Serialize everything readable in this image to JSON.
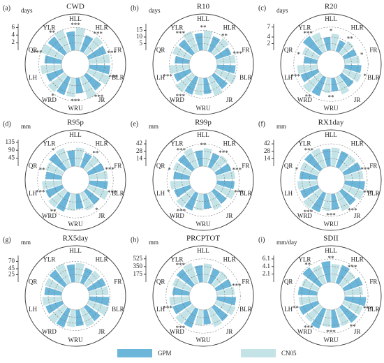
{
  "chart_data": [
    {
      "type": "polar-bar",
      "panel": "(a)",
      "title": "CWD",
      "unit": "days",
      "categories": [
        "HLL",
        "HLR",
        "FR",
        "BLR",
        "JR",
        "WRU",
        "WRD",
        "LH",
        "QR",
        "YLR"
      ],
      "series": [
        {
          "name": "GPM",
          "color": "#6cb6d9",
          "values": [
            5,
            4.5,
            5,
            5.5,
            5,
            4,
            5,
            4.5,
            4.5,
            5.5
          ]
        },
        {
          "name": "CN05",
          "color": "#c3e3e7",
          "values": [
            6,
            5.5,
            5.5,
            6,
            6,
            5,
            5.5,
            5.5,
            6,
            6
          ]
        }
      ],
      "stars": [
        "***",
        "***",
        "***",
        "***",
        "***",
        "***",
        "*",
        null,
        "***",
        "**"
      ],
      "ylim": [
        0,
        7
      ],
      "yticks": [
        2,
        4,
        6
      ]
    },
    {
      "type": "polar-bar",
      "panel": "(b)",
      "title": "R10",
      "unit": "days",
      "categories": [
        "HLL",
        "HLR",
        "FR",
        "BLR",
        "JR",
        "WRU",
        "WRD",
        "LH",
        "QR",
        "YLR"
      ],
      "series": [
        {
          "name": "GPM",
          "color": "#6cb6d9",
          "values": [
            13,
            12,
            12,
            14,
            13,
            12,
            14,
            13,
            11,
            13
          ]
        },
        {
          "name": "CN05",
          "color": "#c3e3e7",
          "values": [
            15,
            14,
            14,
            16,
            15,
            13,
            16,
            15,
            14,
            16
          ]
        }
      ],
      "stars": [
        "**",
        "**",
        "***",
        null,
        null,
        null,
        "***",
        "***",
        null,
        "***"
      ],
      "ylim": [
        0,
        20
      ],
      "yticks": [
        5,
        10,
        15
      ]
    },
    {
      "type": "polar-bar",
      "panel": "(c)",
      "title": "R20",
      "unit": "days",
      "categories": [
        "HLL",
        "HLR",
        "FR",
        "BLR",
        "JR",
        "WRU",
        "WRD",
        "LH",
        "QR",
        "YLR"
      ],
      "series": [
        {
          "name": "GPM",
          "color": "#6cb6d9",
          "values": [
            4,
            3.5,
            4,
            5,
            4.5,
            4,
            6,
            5.5,
            4,
            6.5
          ]
        },
        {
          "name": "CN05",
          "color": "#c3e3e7",
          "values": [
            5,
            4.5,
            4.5,
            5.5,
            5.5,
            4.5,
            6.5,
            6,
            5,
            6
          ]
        }
      ],
      "stars": [
        "*",
        "**",
        "*",
        "*",
        null,
        "**",
        "**",
        "***",
        "*",
        "***"
      ],
      "ylim": [
        0,
        8
      ],
      "yticks": [
        2,
        4,
        7
      ]
    },
    {
      "type": "polar-bar",
      "panel": "(d)",
      "title": "R95p",
      "unit": "mm",
      "categories": [
        "HLL",
        "HLR",
        "FR",
        "BLR",
        "JR",
        "WRU",
        "WRD",
        "LH",
        "QR",
        "YLR"
      ],
      "series": [
        {
          "name": "GPM",
          "color": "#6cb6d9",
          "values": [
            90,
            85,
            95,
            105,
            95,
            85,
            110,
            100,
            90,
            110
          ]
        },
        {
          "name": "CN05",
          "color": "#c3e3e7",
          "values": [
            105,
            95,
            105,
            120,
            105,
            95,
            115,
            110,
            100,
            115
          ]
        }
      ],
      "stars": [
        null,
        "**",
        "***",
        "***",
        "*",
        null,
        "**",
        "***",
        "**",
        "*"
      ],
      "ylim": [
        0,
        150
      ],
      "yticks": [
        45,
        90,
        135
      ]
    },
    {
      "type": "polar-bar",
      "panel": "(e)",
      "title": "R99p",
      "unit": "mm",
      "categories": [
        "HLL",
        "HLR",
        "FR",
        "BLR",
        "JR",
        "WRU",
        "WRD",
        "LH",
        "QR",
        "YLR"
      ],
      "series": [
        {
          "name": "GPM",
          "color": "#6cb6d9",
          "values": [
            30,
            28,
            30,
            33,
            30,
            28,
            35,
            32,
            30,
            34
          ]
        },
        {
          "name": "CN05",
          "color": "#c3e3e7",
          "values": [
            34,
            32,
            34,
            38,
            34,
            31,
            38,
            36,
            34,
            38
          ]
        }
      ],
      "stars": [
        "**",
        "***",
        "***",
        "***",
        null,
        null,
        "***",
        "*",
        "*",
        "***"
      ],
      "ylim": [
        0,
        50
      ],
      "yticks": [
        14,
        28,
        42
      ]
    },
    {
      "type": "polar-bar",
      "panel": "(f)",
      "title": "RX1day",
      "unit": "mm",
      "categories": [
        "HLL",
        "HLR",
        "FR",
        "BLR",
        "JR",
        "WRU",
        "WRD",
        "LH",
        "QR",
        "YLR"
      ],
      "series": [
        {
          "name": "GPM",
          "color": "#6cb6d9",
          "values": [
            33,
            32,
            34,
            38,
            33,
            30,
            38,
            35,
            33,
            37
          ]
        },
        {
          "name": "CN05",
          "color": "#c3e3e7",
          "values": [
            35,
            33,
            35,
            40,
            36,
            32,
            40,
            37,
            35,
            38
          ]
        }
      ],
      "stars": [
        null,
        null,
        "***",
        "***",
        "***",
        "***",
        "***",
        null,
        "*",
        "***"
      ],
      "ylim": [
        0,
        50
      ],
      "yticks": [
        14,
        28,
        42
      ]
    },
    {
      "type": "polar-bar",
      "panel": "(g)",
      "title": "RX5day",
      "unit": "mm",
      "categories": [
        "HLL",
        "HLR",
        "FR",
        "BLR",
        "JR",
        "WRU",
        "WRD",
        "LH",
        "QR",
        "YLR"
      ],
      "series": [
        {
          "name": "GPM",
          "color": "#6cb6d9",
          "values": [
            60,
            55,
            62,
            68,
            60,
            55,
            66,
            60,
            58,
            65
          ]
        },
        {
          "name": "CN05",
          "color": "#c3e3e7",
          "values": [
            65,
            60,
            65,
            72,
            64,
            58,
            70,
            65,
            62,
            70
          ]
        }
      ],
      "ylim": [
        0,
        90
      ],
      "yticks": [
        25,
        45,
        70
      ]
    },
    {
      "type": "polar-bar",
      "panel": "(h)",
      "title": "PRCPTOT",
      "unit": "mm",
      "categories": [
        "HLL",
        "HLR",
        "FR",
        "BLR",
        "JR",
        "WRU",
        "WRD",
        "LH",
        "QR",
        "YLR"
      ],
      "series": [
        {
          "name": "GPM",
          "color": "#6cb6d9",
          "values": [
            380,
            350,
            370,
            430,
            400,
            330,
            450,
            420,
            380,
            450
          ]
        },
        {
          "name": "CN05",
          "color": "#c3e3e7",
          "values": [
            420,
            380,
            400,
            460,
            430,
            360,
            480,
            450,
            420,
            480
          ]
        }
      ],
      "stars": [
        null,
        null,
        "***",
        null,
        null,
        null,
        "***",
        "***",
        null,
        "***"
      ],
      "ylim": [
        0,
        600
      ],
      "yticks": [
        175,
        350,
        525
      ]
    },
    {
      "type": "polar-bar",
      "panel": "(i)",
      "title": "SDII",
      "unit": "mm/day",
      "categories": [
        "HLL",
        "HLR",
        "FR",
        "BLR",
        "JR",
        "WRU",
        "WRD",
        "LH",
        "QR",
        "YLR"
      ],
      "series": [
        {
          "name": "GPM",
          "color": "#6cb6d9",
          "values": [
            5.5,
            5,
            5.2,
            5.6,
            5.2,
            4.8,
            5.5,
            5.2,
            5,
            5.8
          ]
        },
        {
          "name": "CN05",
          "color": "#c3e3e7",
          "values": [
            4.8,
            4.5,
            4.8,
            5.2,
            4.8,
            4.5,
            5,
            4.8,
            4.6,
            5
          ]
        }
      ],
      "stars": [
        "**",
        "***",
        null,
        "***",
        "**",
        "***",
        "***",
        "**",
        null,
        "**"
      ],
      "ylim": [
        0,
        7
      ],
      "yticks": [
        2.1,
        4.1,
        6.1
      ]
    }
  ]
}
